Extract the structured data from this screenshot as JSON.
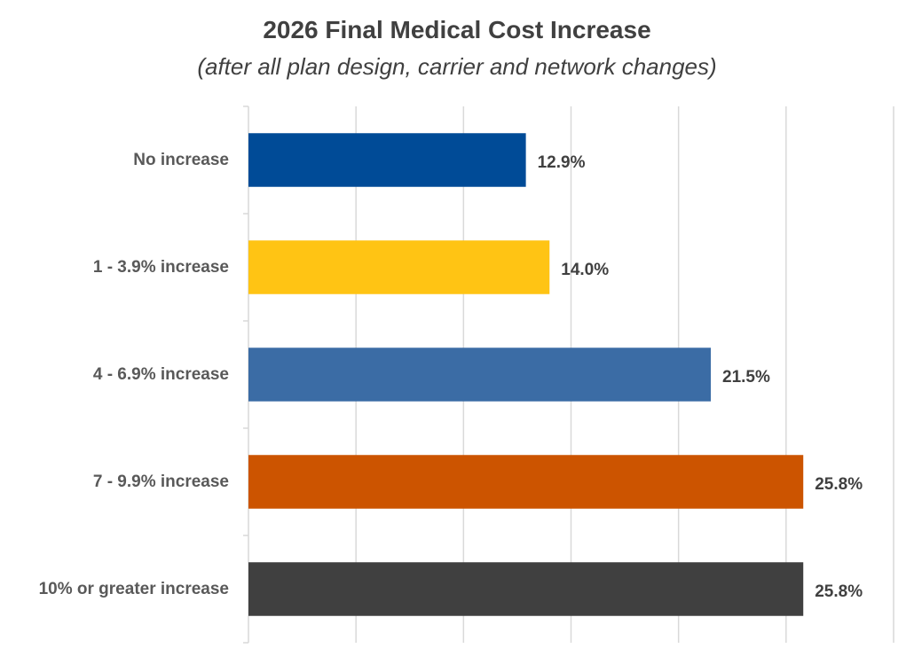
{
  "chart_data": {
    "type": "bar",
    "orientation": "horizontal",
    "title": "2026 Final Medical Cost Increase",
    "subtitle": "(after all plan design, carrier and network changes)",
    "categories": [
      "No increase",
      "1 - 3.9% increase",
      "4 - 6.9% increase",
      "7 - 9.9% increase",
      "10% or greater increase"
    ],
    "values": [
      12.9,
      14.0,
      21.5,
      25.8,
      25.8
    ],
    "value_labels": [
      "12.9%",
      "14.0%",
      "21.5%",
      "25.8%",
      "25.8%"
    ],
    "colors": [
      "#004B97",
      "#FFC414",
      "#3B6CA5",
      "#CC5400",
      "#404040"
    ],
    "xlim": [
      0,
      30
    ],
    "x_gridline_step": 5,
    "grid": true,
    "legend": "none",
    "xaxis_tick_labels_shown": false
  }
}
